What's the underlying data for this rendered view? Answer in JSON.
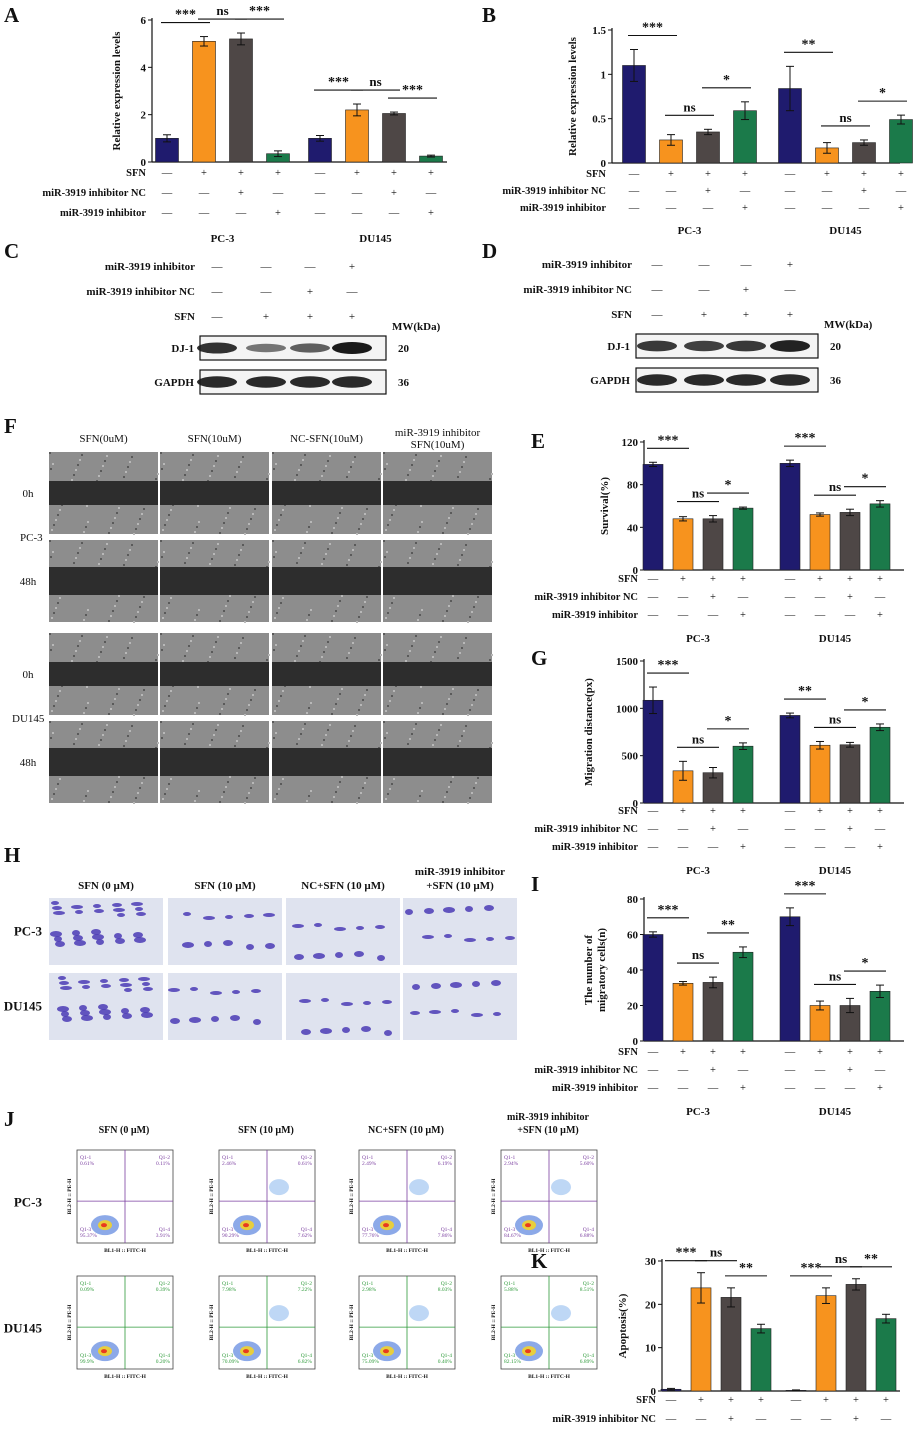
{
  "colors": {
    "navy": "#1f1b6e",
    "orange": "#f7931e",
    "gray": "#4e4746",
    "green": "#1b7a4a",
    "blot_bg": "#f4f4f4",
    "band": "#1a1a1a"
  },
  "panel_letters": {
    "A": "A",
    "B": "B",
    "C": "C",
    "D": "D",
    "E": "E",
    "F": "F",
    "G": "G",
    "H": "H",
    "I": "I",
    "J": "J",
    "K": "K"
  },
  "group_labels": {
    "pc3": "PC-3",
    "du145": "DU145"
  },
  "treatment_rows": [
    {
      "label": "SFN",
      "signs": [
        "—",
        "+",
        "+",
        "+",
        "—",
        "+",
        "+",
        "+"
      ]
    },
    {
      "label": "miR-3919 inhibitor NC",
      "signs": [
        "—",
        "—",
        "+",
        "—",
        "—",
        "—",
        "+",
        "—"
      ]
    },
    {
      "label": "miR-3919 inhibitor",
      "signs": [
        "—",
        "—",
        "—",
        "+",
        "—",
        "—",
        "—",
        "+"
      ]
    }
  ],
  "chart_data": [
    {
      "panel": "A",
      "type": "bar",
      "ylabel": "Relative expression levels",
      "ylim": [
        0,
        6
      ],
      "yticks": [
        0,
        2,
        4,
        6
      ],
      "groups": [
        "PC-3",
        "DU145"
      ],
      "values": [
        1.0,
        5.1,
        5.2,
        0.35,
        1.0,
        2.2,
        2.05,
        0.25
      ],
      "errors": [
        0.15,
        0.2,
        0.25,
        0.12,
        0.12,
        0.25,
        0.06,
        0.04
      ],
      "brackets": [
        {
          "from": 0,
          "to": 1,
          "label": "***"
        },
        {
          "from": 1,
          "to": 2,
          "label": "ns"
        },
        {
          "from": 2,
          "to": 3,
          "label": "***"
        },
        {
          "from": 4,
          "to": 5,
          "label": "***"
        },
        {
          "from": 5,
          "to": 6,
          "label": "ns"
        },
        {
          "from": 6,
          "to": 7,
          "label": "***"
        }
      ]
    },
    {
      "panel": "B",
      "type": "bar",
      "ylabel": "Relative expression levels",
      "ylim": [
        0,
        1.5
      ],
      "yticks": [
        0.0,
        0.5,
        1.0,
        1.5
      ],
      "groups": [
        "PC-3",
        "DU145"
      ],
      "values": [
        1.1,
        0.26,
        0.35,
        0.59,
        0.84,
        0.17,
        0.23,
        0.49
      ],
      "errors": [
        0.18,
        0.06,
        0.03,
        0.1,
        0.25,
        0.06,
        0.03,
        0.05
      ],
      "brackets": [
        {
          "from": 0,
          "to": 1,
          "label": "***"
        },
        {
          "from": 1,
          "to": 2,
          "label": "ns"
        },
        {
          "from": 2,
          "to": 3,
          "label": "*"
        },
        {
          "from": 4,
          "to": 5,
          "label": "**"
        },
        {
          "from": 5,
          "to": 6,
          "label": "ns"
        },
        {
          "from": 6,
          "to": 7,
          "label": "*"
        }
      ]
    },
    {
      "panel": "E",
      "type": "bar",
      "ylabel": "Survival(%)",
      "ylim": [
        0,
        120
      ],
      "yticks": [
        0,
        40,
        80,
        120
      ],
      "groups": [
        "PC-3",
        "DU145"
      ],
      "values": [
        99,
        48,
        48,
        58,
        100,
        52,
        54,
        62
      ],
      "errors": [
        2,
        2,
        3,
        1,
        3,
        1.5,
        3,
        3
      ],
      "brackets": [
        {
          "from": 0,
          "to": 1,
          "label": "***"
        },
        {
          "from": 1,
          "to": 2,
          "label": "ns"
        },
        {
          "from": 2,
          "to": 3,
          "label": "*"
        },
        {
          "from": 4,
          "to": 5,
          "label": "***"
        },
        {
          "from": 5,
          "to": 6,
          "label": "ns"
        },
        {
          "from": 6,
          "to": 7,
          "label": "*"
        }
      ]
    },
    {
      "panel": "G",
      "type": "bar",
      "ylabel": "Migration distance(px)",
      "ylim": [
        0,
        1500
      ],
      "yticks": [
        0,
        500,
        1000,
        1500
      ],
      "groups": [
        "PC-3",
        "DU145"
      ],
      "values": [
        1085,
        340,
        320,
        600,
        925,
        610,
        615,
        800
      ],
      "errors": [
        140,
        100,
        55,
        35,
        25,
        40,
        25,
        35
      ],
      "brackets": [
        {
          "from": 0,
          "to": 1,
          "label": "***"
        },
        {
          "from": 1,
          "to": 2,
          "label": "ns"
        },
        {
          "from": 2,
          "to": 3,
          "label": "*"
        },
        {
          "from": 4,
          "to": 5,
          "label": "**"
        },
        {
          "from": 5,
          "to": 6,
          "label": "ns"
        },
        {
          "from": 6,
          "to": 7,
          "label": "*"
        }
      ]
    },
    {
      "panel": "I",
      "type": "bar",
      "ylabel": "The number of\nmigratory cells(n)",
      "ylim": [
        0,
        80
      ],
      "yticks": [
        0,
        20,
        40,
        60,
        80
      ],
      "groups": [
        "PC-3",
        "DU145"
      ],
      "values": [
        60,
        32.5,
        33,
        50,
        70,
        20,
        20,
        28
      ],
      "errors": [
        1.5,
        1,
        3,
        3,
        5,
        2.5,
        4,
        3.5
      ],
      "brackets": [
        {
          "from": 0,
          "to": 1,
          "label": "***"
        },
        {
          "from": 1,
          "to": 2,
          "label": "ns"
        },
        {
          "from": 2,
          "to": 3,
          "label": "**"
        },
        {
          "from": 4,
          "to": 5,
          "label": "***"
        },
        {
          "from": 5,
          "to": 6,
          "label": "ns"
        },
        {
          "from": 6,
          "to": 7,
          "label": "*"
        }
      ]
    },
    {
      "panel": "K",
      "type": "bar",
      "ylabel": "Apoptosis(%)",
      "ylim": [
        0,
        30
      ],
      "yticks": [
        0,
        10,
        20,
        30
      ],
      "groups": [
        "PC-3",
        "DU145"
      ],
      "values": [
        0.4,
        23.8,
        21.6,
        14.4,
        0.15,
        22.0,
        24.6,
        16.7
      ],
      "errors": [
        0.2,
        3.5,
        2.2,
        1.0,
        0.1,
        1.8,
        1.3,
        1.0
      ],
      "brackets": [
        {
          "from": 0,
          "to": 1,
          "label": "***"
        },
        {
          "from": 1,
          "to": 2,
          "label": "ns"
        },
        {
          "from": 2,
          "to": 3,
          "label": "**"
        },
        {
          "from": 4,
          "to": 5,
          "label": "***"
        },
        {
          "from": 5,
          "to": 6,
          "label": "ns"
        },
        {
          "from": 6,
          "to": 7,
          "label": "**"
        }
      ]
    }
  ],
  "blot_C": {
    "rows": [
      {
        "label": "miR-3919 inhibitor",
        "signs": [
          "—",
          "—",
          "—",
          "+"
        ]
      },
      {
        "label": "miR-3919 inhibitor NC",
        "signs": [
          "—",
          "—",
          "+",
          "—"
        ]
      },
      {
        "label": "SFN",
        "signs": [
          "—",
          "+",
          "+",
          "+"
        ]
      }
    ],
    "mw_header": "MW(kDa)",
    "bands": [
      {
        "label": "DJ-1",
        "mw": "20",
        "intensity": [
          0.85,
          0.4,
          0.55,
          1.0
        ]
      },
      {
        "label": "GAPDH",
        "mw": "36",
        "intensity": [
          0.9,
          0.9,
          0.9,
          0.9
        ]
      }
    ]
  },
  "blot_D": {
    "rows": [
      {
        "label": "miR-3919 inhibitor",
        "signs": [
          "—",
          "—",
          "—",
          "+"
        ]
      },
      {
        "label": "miR-3919 inhibitor NC",
        "signs": [
          "—",
          "—",
          "+",
          "—"
        ]
      },
      {
        "label": "SFN",
        "signs": [
          "—",
          "+",
          "+",
          "+"
        ]
      }
    ],
    "mw_header": "MW(kDa)",
    "bands": [
      {
        "label": "DJ-1",
        "mw": "20",
        "intensity": [
          0.8,
          0.75,
          0.8,
          0.95
        ]
      },
      {
        "label": "GAPDH",
        "mw": "36",
        "intensity": [
          0.9,
          0.9,
          0.9,
          0.9
        ]
      }
    ]
  },
  "panel_F": {
    "columns": [
      "SFN(0uM)",
      "SFN(10uM)",
      "NC-SFN(10uM)",
      "miR-3919 inhibitor\nSFN(10uM)"
    ],
    "rows": [
      "0h",
      "48h",
      "0h",
      "48h"
    ],
    "cell_lines": [
      "PC-3",
      "DU145"
    ]
  },
  "panel_H": {
    "columns": [
      "SFN (0 µM)",
      "SFN (10 µM)",
      "NC+SFN (10 µM)",
      "miR-3919 inhibitor\n+SFN (10 µM)"
    ],
    "rows": [
      "PC-3",
      "DU145"
    ]
  },
  "panel_J": {
    "columns": [
      "SFN (0 µM)",
      "SFN (10 µM)",
      "NC+SFN (10 µM)",
      "miR-3919 inhibitor\n+SFN (10 µM)"
    ],
    "rows": [
      "PC-3",
      "DU145"
    ],
    "axis_x": "BL1-H :: FITC-H",
    "axis_y": "BL2-H :: PE-H",
    "quadrants": [
      [
        "Q1-1\n0.61%",
        "Q1-2\n0.11%",
        "Q1-3\n95.37%",
        "Q1-4\n3.91%"
      ],
      [
        "Q1-1\n2.46%",
        "Q1-2\n0.61%",
        "Q1-3\n90.29%",
        "Q1-4\n7.62%"
      ],
      [
        "Q1-1\n2.49%",
        "Q1-2\n6.19%",
        "Q1-3\n77.76%",
        "Q1-4\n7.86%"
      ],
      [
        "Q1-1\n2.94%",
        "Q1-2\n5.60%",
        "Q1-3\n84.67%",
        "Q1-4\n6.88%"
      ],
      [
        "Q1-1\n0.09%",
        "Q1-2\n0.39%",
        "Q1-3\n99.9%",
        "Q1-4\n0.20%"
      ],
      [
        "Q1-1\n7.98%",
        "Q1-2\n7.22%",
        "Q1-3\n70.09%",
        "Q1-4\n6.82%"
      ],
      [
        "Q1-1\n2.98%",
        "Q1-2\n8.03%",
        "Q1-3\n75.09%",
        "Q1-4\n0.40%"
      ],
      [
        "Q1-1\n5.88%",
        "Q1-2\n8.51%",
        "Q1-3\n82.15%",
        "Q1-4\n6.89%"
      ]
    ]
  }
}
